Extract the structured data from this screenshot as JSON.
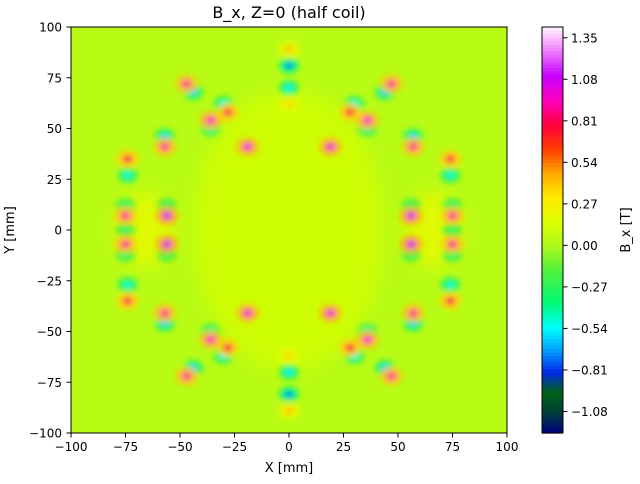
{
  "chart_data": {
    "type": "heatmap",
    "title": "B_x, Z=0 (half coil)",
    "xlabel": "X [mm]",
    "ylabel": "Y [mm]",
    "xlim": [
      -100,
      100
    ],
    "ylim": [
      -100,
      100
    ],
    "x_ticks": [
      -100,
      -75,
      -50,
      -25,
      0,
      25,
      50,
      75,
      100
    ],
    "y_ticks": [
      -100,
      -75,
      -50,
      -25,
      0,
      25,
      50,
      75,
      100
    ],
    "x_tick_labels": [
      "−100",
      "−75",
      "−50",
      "−25",
      "0",
      "25",
      "50",
      "75",
      "100"
    ],
    "y_tick_labels": [
      "−100",
      "−75",
      "−50",
      "−25",
      "0",
      "25",
      "50",
      "75",
      "100"
    ],
    "grid": false,
    "colormap": "gist_ncar",
    "colorbar": {
      "label": "B_x [T]",
      "range": [
        -1.22,
        1.42
      ],
      "ticks": [
        -1.08,
        -0.81,
        -0.54,
        -0.27,
        0.0,
        0.27,
        0.54,
        0.81,
        1.08,
        1.35
      ],
      "tick_labels": [
        "−1.08",
        "−0.81",
        "−0.54",
        "−0.27",
        "0.00",
        "0.27",
        "0.54",
        "0.81",
        "1.08",
        "1.35"
      ]
    },
    "background_value": 0.0,
    "hotspots": [
      {
        "x": -75,
        "y": 7,
        "peak": 0.9
      },
      {
        "x": -75,
        "y": -7,
        "peak": 0.9
      },
      {
        "x": -56,
        "y": 7,
        "peak": 1.05
      },
      {
        "x": -56,
        "y": -7,
        "peak": 1.05
      },
      {
        "x": 75,
        "y": 7,
        "peak": 0.9
      },
      {
        "x": 75,
        "y": -7,
        "peak": 0.9
      },
      {
        "x": 56,
        "y": 7,
        "peak": 1.05
      },
      {
        "x": 56,
        "y": -7,
        "peak": 1.05
      },
      {
        "x": -74,
        "y": 35,
        "peak": 0.8
      },
      {
        "x": -74,
        "y": -35,
        "peak": 0.8
      },
      {
        "x": 74,
        "y": 35,
        "peak": 0.8
      },
      {
        "x": 74,
        "y": -35,
        "peak": 0.8
      },
      {
        "x": -57,
        "y": 41,
        "peak": 0.9
      },
      {
        "x": -57,
        "y": -41,
        "peak": 0.9
      },
      {
        "x": 57,
        "y": 41,
        "peak": 0.9
      },
      {
        "x": 57,
        "y": -41,
        "peak": 0.9
      },
      {
        "x": -19,
        "y": 41,
        "peak": 1.0
      },
      {
        "x": -19,
        "y": -41,
        "peak": 1.0
      },
      {
        "x": 19,
        "y": 41,
        "peak": 1.0
      },
      {
        "x": 19,
        "y": -41,
        "peak": 1.0
      },
      {
        "x": -36,
        "y": 54,
        "peak": 0.95
      },
      {
        "x": -36,
        "y": -54,
        "peak": 0.95
      },
      {
        "x": 36,
        "y": 54,
        "peak": 0.95
      },
      {
        "x": 36,
        "y": -54,
        "peak": 0.95
      },
      {
        "x": -28,
        "y": 58,
        "peak": 0.8
      },
      {
        "x": -28,
        "y": -58,
        "peak": 0.8
      },
      {
        "x": 28,
        "y": 58,
        "peak": 0.8
      },
      {
        "x": 28,
        "y": -58,
        "peak": 0.8
      },
      {
        "x": -47,
        "y": 72,
        "peak": 0.9
      },
      {
        "x": -47,
        "y": -72,
        "peak": 0.9
      },
      {
        "x": 47,
        "y": 72,
        "peak": 0.9
      },
      {
        "x": 47,
        "y": -72,
        "peak": 0.9
      },
      {
        "x": 0,
        "y": 89,
        "peak": 0.4
      },
      {
        "x": 0,
        "y": -89,
        "peak": 0.4
      },
      {
        "x": 0,
        "y": 62,
        "peak": 0.35
      },
      {
        "x": 0,
        "y": -62,
        "peak": 0.35
      }
    ],
    "cold_spots": [
      {
        "x": -75,
        "y": 0,
        "peak": -0.3
      },
      {
        "x": 75,
        "y": 0,
        "peak": -0.3
      },
      {
        "x": -74,
        "y": 27,
        "peak": -0.5
      },
      {
        "x": -74,
        "y": -27,
        "peak": -0.5
      },
      {
        "x": 74,
        "y": 27,
        "peak": -0.5
      },
      {
        "x": 74,
        "y": -27,
        "peak": -0.5
      },
      {
        "x": -57,
        "y": 46,
        "peak": -0.6
      },
      {
        "x": -57,
        "y": -46,
        "peak": -0.6
      },
      {
        "x": 57,
        "y": 46,
        "peak": -0.6
      },
      {
        "x": 57,
        "y": -46,
        "peak": -0.6
      },
      {
        "x": -44,
        "y": 68,
        "peak": -0.6
      },
      {
        "x": -44,
        "y": -68,
        "peak": -0.6
      },
      {
        "x": 44,
        "y": 68,
        "peak": -0.6
      },
      {
        "x": 44,
        "y": -68,
        "peak": -0.6
      },
      {
        "x": -30,
        "y": 62,
        "peak": -0.55
      },
      {
        "x": -30,
        "y": -62,
        "peak": -0.55
      },
      {
        "x": 30,
        "y": 62,
        "peak": -0.55
      },
      {
        "x": 30,
        "y": -62,
        "peak": -0.55
      },
      {
        "x": -36,
        "y": 50,
        "peak": -0.45
      },
      {
        "x": -36,
        "y": -50,
        "peak": -0.45
      },
      {
        "x": 36,
        "y": 50,
        "peak": -0.45
      },
      {
        "x": 36,
        "y": -50,
        "peak": -0.45
      },
      {
        "x": 0,
        "y": 81,
        "peak": -0.7
      },
      {
        "x": 0,
        "y": -81,
        "peak": -0.7
      },
      {
        "x": 0,
        "y": 70,
        "peak": -0.55
      },
      {
        "x": 0,
        "y": -70,
        "peak": -0.55
      },
      {
        "x": -75,
        "y": 12,
        "peak": -0.35
      },
      {
        "x": -75,
        "y": -12,
        "peak": -0.35
      },
      {
        "x": 75,
        "y": 12,
        "peak": -0.35
      },
      {
        "x": 75,
        "y": -12,
        "peak": -0.35
      },
      {
        "x": -56,
        "y": 12,
        "peak": -0.3
      },
      {
        "x": -56,
        "y": -12,
        "peak": -0.3
      },
      {
        "x": 56,
        "y": 12,
        "peak": -0.3
      },
      {
        "x": 56,
        "y": -12,
        "peak": -0.3
      }
    ],
    "warm_regions": [
      {
        "x": -66,
        "y": 0,
        "value": 0.2
      },
      {
        "x": 66,
        "y": 0,
        "value": 0.2
      },
      {
        "x": 0,
        "y": 0,
        "value": 0.12
      }
    ]
  }
}
